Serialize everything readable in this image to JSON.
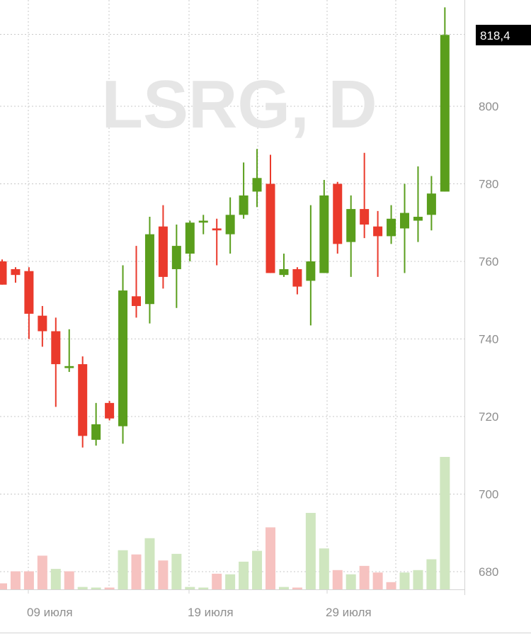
{
  "ticker": "LSRG",
  "timeframe": "D",
  "watermark": "LSRG, D",
  "last_price": "818,4",
  "colors": {
    "up": "#5a9e1c",
    "down": "#ea3a2c",
    "vol_up": "#cfe6bf",
    "vol_down": "#f6c2c0",
    "grid": "#c8c8c8",
    "axis_text": "#8e8e8e",
    "price_tag_bg": "#000000"
  },
  "chart_data": {
    "type": "candlestick",
    "title": "LSRG, D",
    "xlabel": "",
    "ylabel": "",
    "x_ticks": [
      "09 июля",
      "19 июля",
      "29 июля"
    ],
    "y_ticks": [
      680,
      700,
      720,
      740,
      760,
      780,
      800
    ],
    "ylim": [
      678,
      822
    ],
    "grid": true,
    "candles": [
      {
        "o": 760,
        "h": 760.5,
        "l": 754,
        "c": 754
      },
      {
        "o": 758,
        "h": 758.5,
        "l": 754.5,
        "c": 756.5
      },
      {
        "o": 757.5,
        "h": 758.5,
        "l": 740,
        "c": 746.5
      },
      {
        "o": 746,
        "h": 748.5,
        "l": 738,
        "c": 742
      },
      {
        "o": 742,
        "h": 745.5,
        "l": 722.5,
        "c": 733.5
      },
      {
        "o": 732.5,
        "h": 742.5,
        "l": 731.5,
        "c": 733
      },
      {
        "o": 733.5,
        "h": 735.5,
        "l": 712,
        "c": 715
      },
      {
        "o": 714,
        "h": 723.5,
        "l": 712.5,
        "c": 718
      },
      {
        "o": 723.5,
        "h": 724,
        "l": 719,
        "c": 719.5
      },
      {
        "o": 717.5,
        "h": 759,
        "l": 713,
        "c": 752.5
      },
      {
        "o": 751,
        "h": 764,
        "l": 745.5,
        "c": 748.5
      },
      {
        "o": 749,
        "h": 771.5,
        "l": 744,
        "c": 767
      },
      {
        "o": 769,
        "h": 774.5,
        "l": 753,
        "c": 756
      },
      {
        "o": 758,
        "h": 769.5,
        "l": 748,
        "c": 764
      },
      {
        "o": 762,
        "h": 770.5,
        "l": 760,
        "c": 770
      },
      {
        "o": 770,
        "h": 772,
        "l": 767,
        "c": 770.5
      },
      {
        "o": 768.5,
        "h": 771,
        "l": 759,
        "c": 768
      },
      {
        "o": 767,
        "h": 776.5,
        "l": 762,
        "c": 772
      },
      {
        "o": 772,
        "h": 785.5,
        "l": 771,
        "c": 777
      },
      {
        "o": 778,
        "h": 789,
        "l": 774,
        "c": 781.5
      },
      {
        "o": 780,
        "h": 787.5,
        "l": 757,
        "c": 757
      },
      {
        "o": 756.5,
        "h": 762,
        "l": 756,
        "c": 758
      },
      {
        "o": 758,
        "h": 758.5,
        "l": 751.5,
        "c": 753.5
      },
      {
        "o": 755,
        "h": 774.5,
        "l": 743.5,
        "c": 760
      },
      {
        "o": 757,
        "h": 781,
        "l": 757,
        "c": 777
      },
      {
        "o": 780,
        "h": 780.5,
        "l": 762,
        "c": 764.5
      },
      {
        "o": 765,
        "h": 777,
        "l": 756,
        "c": 773.5
      },
      {
        "o": 773.5,
        "h": 788,
        "l": 766,
        "c": 769.5
      },
      {
        "o": 769,
        "h": 773,
        "l": 756,
        "c": 766.5
      },
      {
        "o": 766.5,
        "h": 774.5,
        "l": 764.5,
        "c": 771
      },
      {
        "o": 768.5,
        "h": 780,
        "l": 757,
        "c": 772.5
      },
      {
        "o": 770.5,
        "h": 784.5,
        "l": 765,
        "c": 771.5
      },
      {
        "o": 772,
        "h": 782,
        "l": 768,
        "c": 777.5
      },
      {
        "o": 778,
        "h": 825.5,
        "l": 778,
        "c": 818.4
      }
    ],
    "volume": [
      {
        "v": 0.1,
        "up": false
      },
      {
        "v": 0.3,
        "up": false
      },
      {
        "v": 0.3,
        "up": false
      },
      {
        "v": 0.56,
        "up": false
      },
      {
        "v": 0.34,
        "up": true
      },
      {
        "v": 0.3,
        "up": false
      },
      {
        "v": 0.04,
        "up": true
      },
      {
        "v": 0.03,
        "up": true
      },
      {
        "v": 0.03,
        "up": false
      },
      {
        "v": 0.65,
        "up": true
      },
      {
        "v": 0.58,
        "up": false
      },
      {
        "v": 0.85,
        "up": true
      },
      {
        "v": 0.48,
        "up": false
      },
      {
        "v": 0.59,
        "up": true
      },
      {
        "v": 0.04,
        "up": true
      },
      {
        "v": 0.03,
        "up": true
      },
      {
        "v": 0.26,
        "up": false
      },
      {
        "v": 0.25,
        "up": true
      },
      {
        "v": 0.46,
        "up": true
      },
      {
        "v": 0.64,
        "up": true
      },
      {
        "v": 1.03,
        "up": false
      },
      {
        "v": 0.04,
        "up": true
      },
      {
        "v": 0.03,
        "up": false
      },
      {
        "v": 1.27,
        "up": true
      },
      {
        "v": 0.68,
        "up": true
      },
      {
        "v": 0.32,
        "up": false
      },
      {
        "v": 0.25,
        "up": true
      },
      {
        "v": 0.39,
        "up": false
      },
      {
        "v": 0.28,
        "up": false
      },
      {
        "v": 0.12,
        "up": false
      },
      {
        "v": 0.28,
        "up": true
      },
      {
        "v": 0.32,
        "up": true
      },
      {
        "v": 0.5,
        "up": true
      },
      {
        "v": 2.2,
        "up": true
      }
    ]
  }
}
